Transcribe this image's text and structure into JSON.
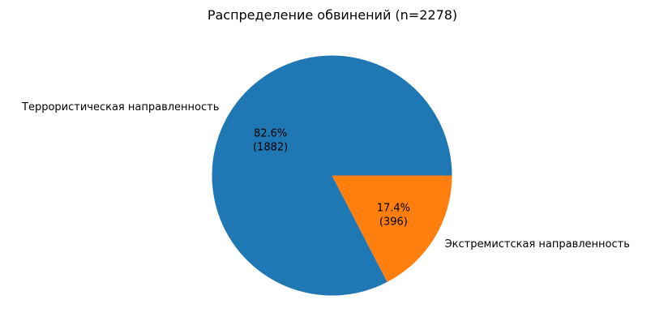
{
  "chart_data": {
    "type": "pie",
    "title": "Распределение обвинений (n=2278)",
    "slices": [
      {
        "label": "Террористическая направленность",
        "value": 1882,
        "percent_text": "82.6%",
        "count_text": "(1882)",
        "color": "#1f77b4"
      },
      {
        "label": "Экстремистская направленность",
        "value": 396,
        "percent_text": "17.4%",
        "count_text": "(396)",
        "color": "#ff7f0e"
      }
    ],
    "start_angle": 0,
    "direction": "counterclockwise"
  }
}
